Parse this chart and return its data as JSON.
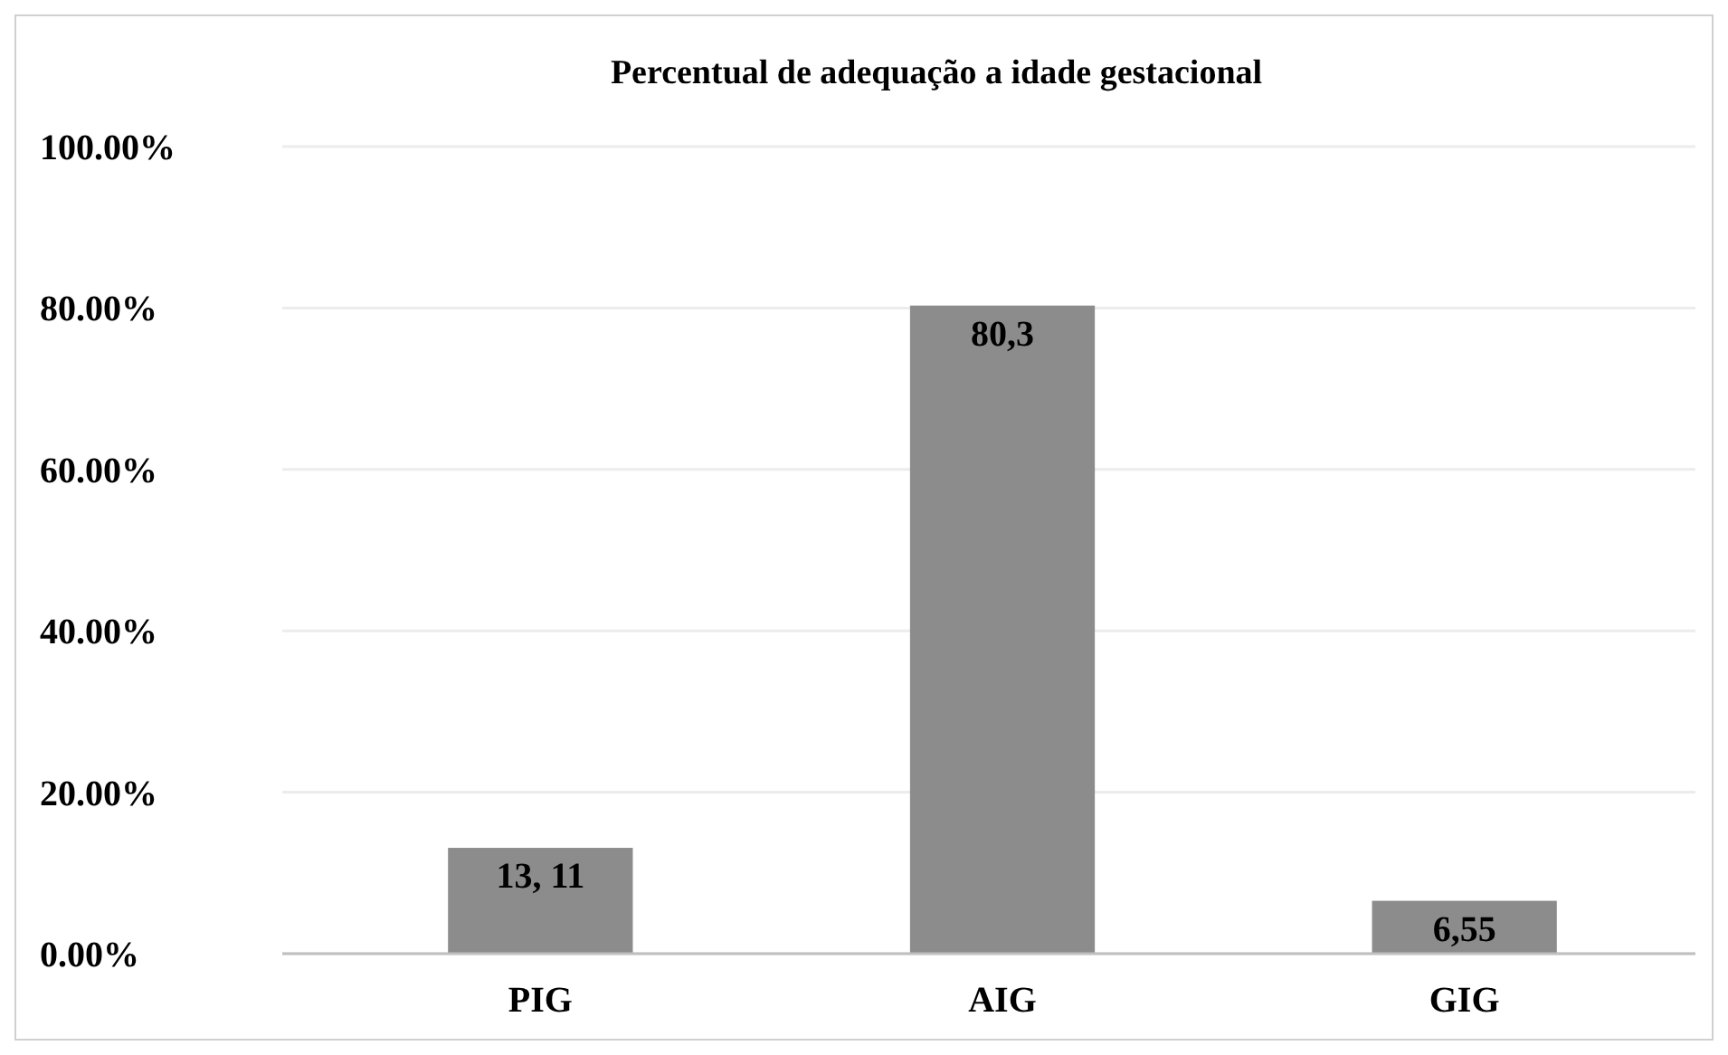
{
  "chart_data": {
    "type": "bar",
    "title": "Percentual de adequação a idade gestacional",
    "categories": [
      "PIG",
      "AIG",
      "GIG"
    ],
    "values": [
      13.11,
      80.3,
      6.55
    ],
    "value_labels": [
      "13, 11",
      "80,3",
      "6,55"
    ],
    "color": "#8c8c8c",
    "ylim": [
      0,
      100
    ],
    "yticks": [
      {
        "value": 0,
        "label": "0.00%"
      },
      {
        "value": 20,
        "label": "20.00%"
      },
      {
        "value": 40,
        "label": "40.00%"
      },
      {
        "value": 60,
        "label": "60.00%"
      },
      {
        "value": 80,
        "label": "80.00%"
      },
      {
        "value": 100,
        "label": "100.00%"
      }
    ],
    "grid": "y"
  }
}
